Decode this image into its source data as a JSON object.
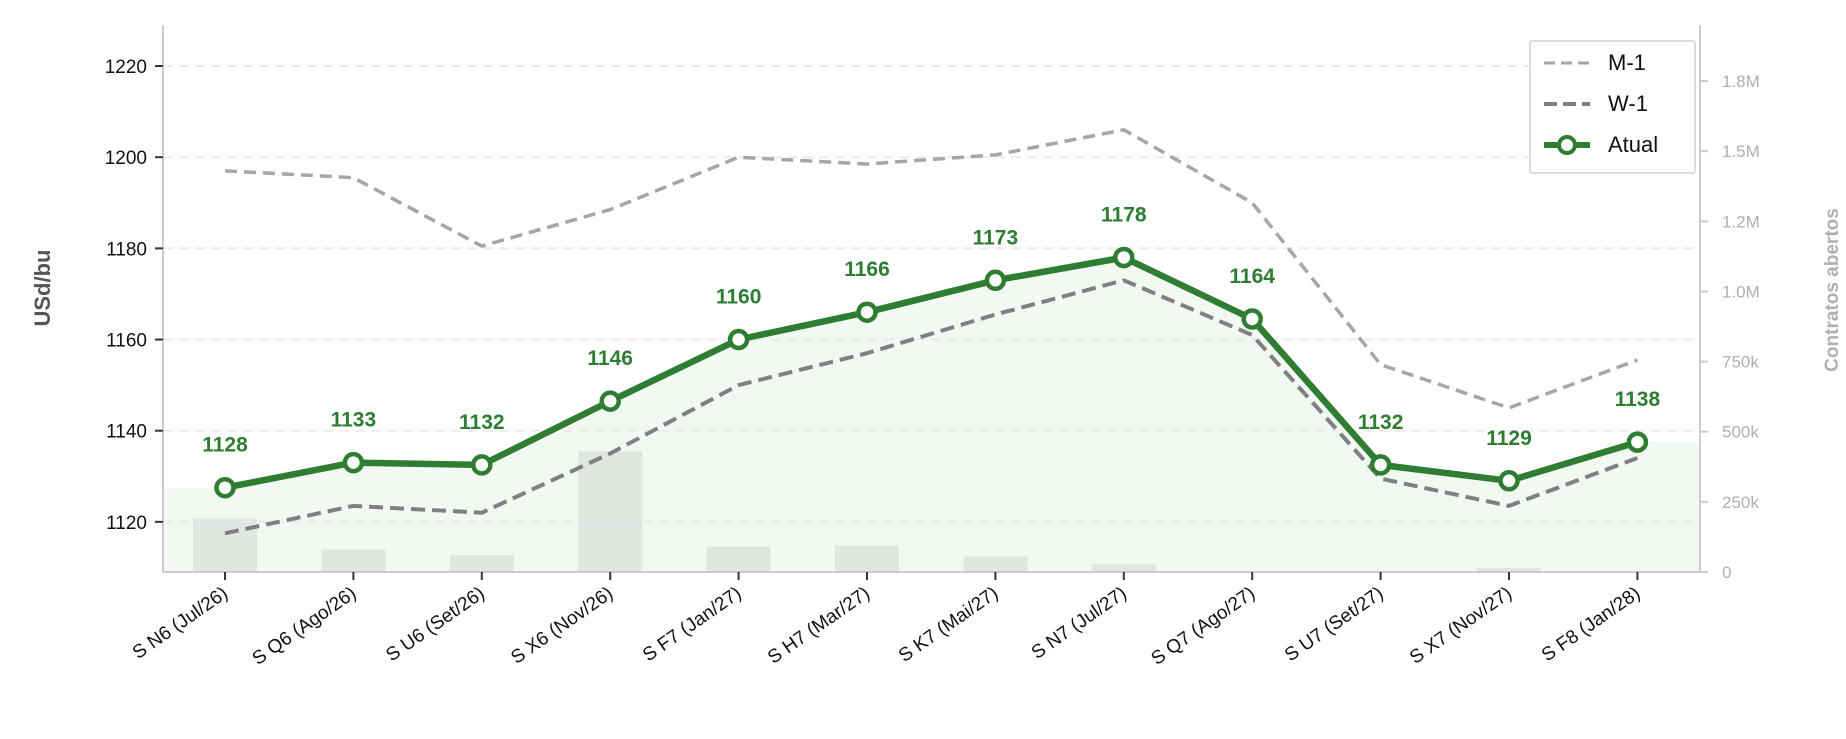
{
  "chart_data": {
    "type": "line",
    "title": "",
    "xlabel": "",
    "ylabel": "USd/bu",
    "y2label": "Contratos abertos",
    "ylim": [
      1109,
      1229
    ],
    "y2lim": [
      0,
      1950000
    ],
    "grid": true,
    "legend_position": "top-right",
    "categories": [
      "S N6 (Jul/26)",
      "S Q6 (Ago/26)",
      "S U6 (Set/26)",
      "S X6 (Nov/26)",
      "S F7 (Jan/27)",
      "S H7 (Mar/27)",
      "S K7 (Mai/27)",
      "S N7 (Jul/27)",
      "S Q7 (Ago/27)",
      "S U7 (Set/27)",
      "S X7 (Nov/27)",
      "S F8 (Jan/28)"
    ],
    "y_ticks": [
      1120,
      1140,
      1160,
      1180,
      1200,
      1220
    ],
    "y2_ticks": [
      {
        "value": 0,
        "label": "0"
      },
      {
        "value": 250000,
        "label": "250k"
      },
      {
        "value": 500000,
        "label": "500k"
      },
      {
        "value": 750000,
        "label": "750k"
      },
      {
        "value": 1000000,
        "label": "1.0M"
      },
      {
        "value": 1250000,
        "label": "1.2M"
      },
      {
        "value": 1500000,
        "label": "1.5M"
      },
      {
        "value": 1750000,
        "label": "1.8M"
      }
    ],
    "series": [
      {
        "name": "M-1",
        "style": "dashed",
        "color": "#a6a6a6",
        "values": [
          1197,
          1195.5,
          1180.5,
          1188.5,
          1200,
          1198.5,
          1200.5,
          1206,
          1190,
          1154.5,
          1145,
          1155.5
        ]
      },
      {
        "name": "W-1",
        "style": "dashed",
        "color": "#808080",
        "values": [
          1117.5,
          1123.5,
          1122,
          1135,
          1150,
          1157,
          1165.5,
          1173,
          1161,
          1129.5,
          1123.5,
          1134
        ]
      },
      {
        "name": "Atual",
        "style": "solid-marker",
        "color": "#2e7d32",
        "values": [
          1127.5,
          1133,
          1132.5,
          1146.5,
          1160,
          1166,
          1173,
          1178,
          1164.5,
          1132.5,
          1129,
          1137.5
        ]
      }
    ],
    "data_labels": [
      "1128",
      "1133",
      "1132",
      "1146",
      "1160",
      "1166",
      "1173",
      "1178",
      "1164",
      "1132",
      "1129",
      "1138"
    ],
    "open_interest": [
      190000,
      80000,
      60000,
      430000,
      90000,
      95000,
      55000,
      28000,
      3000,
      2000,
      15000,
      3000
    ],
    "colors": {
      "accent": "#2e7d32",
      "area_fill": "#f2f8f2",
      "bars": "#e0e6e0",
      "grid": "#ebebeb",
      "axis": "#cccccc",
      "y2_text": "#b0b0b0"
    }
  }
}
